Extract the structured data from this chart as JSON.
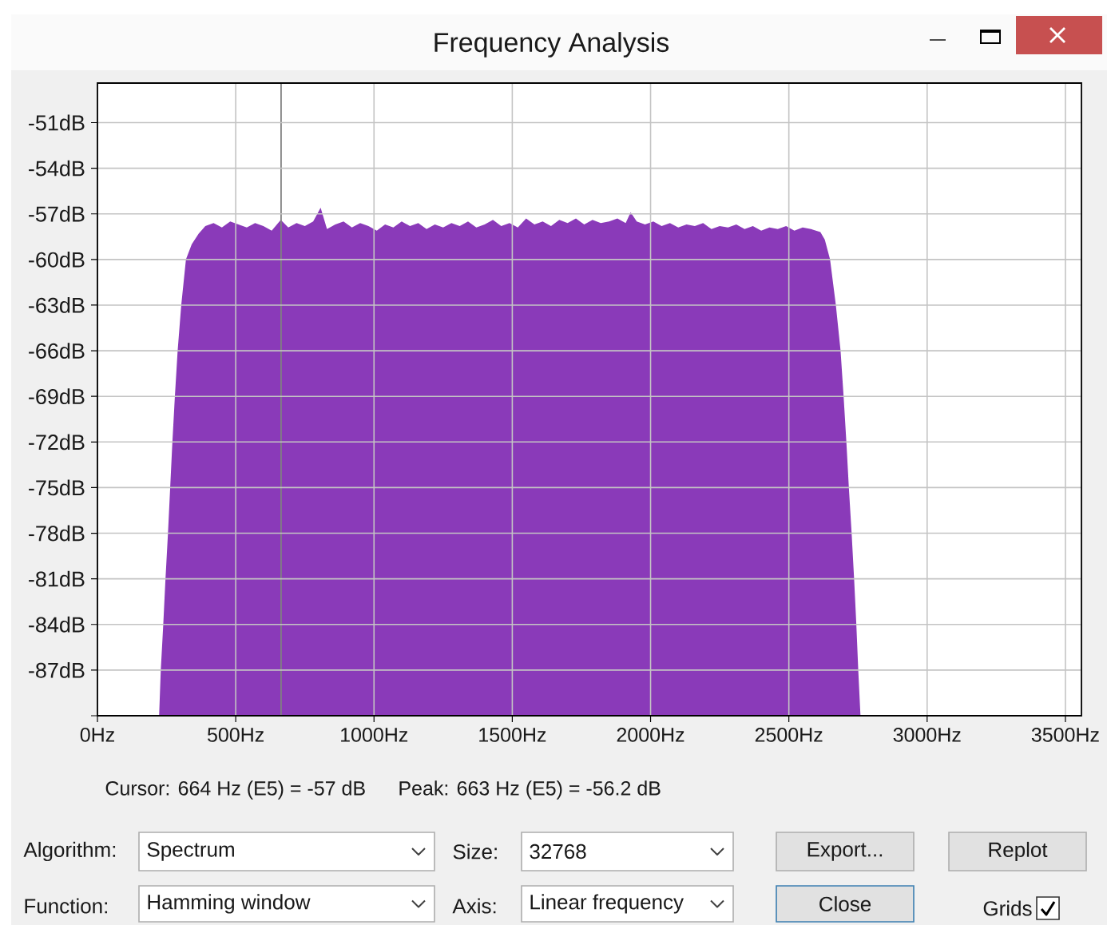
{
  "chart_data": {
    "type": "area",
    "title": "Frequency Analysis",
    "x": [
      223,
      229,
      238,
      246,
      255,
      263,
      271,
      280,
      290,
      303,
      320,
      341,
      366,
      390,
      420,
      450,
      480,
      510,
      540,
      570,
      600,
      630,
      663,
      690,
      720,
      750,
      780,
      807,
      830,
      860,
      890,
      920,
      950,
      980,
      1010,
      1040,
      1070,
      1100,
      1130,
      1160,
      1190,
      1220,
      1250,
      1280,
      1310,
      1340,
      1370,
      1400,
      1430,
      1460,
      1490,
      1520,
      1550,
      1580,
      1610,
      1640,
      1670,
      1700,
      1730,
      1760,
      1790,
      1820,
      1850,
      1880,
      1910,
      1928,
      1950,
      1980,
      2010,
      2040,
      2070,
      2100,
      2130,
      2160,
      2190,
      2220,
      2250,
      2280,
      2310,
      2340,
      2370,
      2400,
      2430,
      2460,
      2490,
      2520,
      2550,
      2580,
      2614,
      2630,
      2649,
      2670,
      2687,
      2698,
      2708,
      2717,
      2727,
      2736,
      2744,
      2751,
      2759
    ],
    "values": [
      -90,
      -87,
      -84,
      -81,
      -78,
      -75,
      -72,
      -69,
      -66,
      -63,
      -60,
      -59,
      -58.3,
      -57.8,
      -57.6,
      -57.9,
      -57.5,
      -57.7,
      -57.9,
      -57.6,
      -57.8,
      -58.1,
      -57.4,
      -57.9,
      -57.6,
      -57.8,
      -57.5,
      -56.6,
      -58.0,
      -57.7,
      -57.5,
      -57.9,
      -57.6,
      -57.8,
      -58.1,
      -57.7,
      -57.9,
      -57.5,
      -57.8,
      -57.6,
      -58.0,
      -57.7,
      -57.9,
      -57.6,
      -57.8,
      -57.5,
      -57.9,
      -57.7,
      -57.4,
      -57.8,
      -57.6,
      -57.9,
      -57.3,
      -57.7,
      -57.5,
      -57.8,
      -57.4,
      -57.6,
      -57.3,
      -57.7,
      -57.4,
      -57.6,
      -57.5,
      -57.3,
      -57.6,
      -56.9,
      -57.5,
      -57.7,
      -57.5,
      -57.8,
      -57.6,
      -57.9,
      -57.7,
      -57.8,
      -57.6,
      -58.0,
      -57.8,
      -57.9,
      -57.7,
      -58.0,
      -57.8,
      -58.1,
      -57.9,
      -58.0,
      -57.8,
      -58.1,
      -57.9,
      -58.0,
      -58.2,
      -58.7,
      -60,
      -63,
      -66,
      -69,
      -72,
      -75,
      -78,
      -81,
      -84,
      -87,
      -90
    ],
    "color": "#8a3ab9",
    "xlim": [
      0,
      3558
    ],
    "ylim": [
      -90,
      -48.4
    ],
    "xticks": [
      {
        "value": 0,
        "label": "0Hz"
      },
      {
        "value": 500,
        "label": "500Hz"
      },
      {
        "value": 1000,
        "label": "1000Hz"
      },
      {
        "value": 1500,
        "label": "1500Hz"
      },
      {
        "value": 2000,
        "label": "2000Hz"
      },
      {
        "value": 2500,
        "label": "2500Hz"
      },
      {
        "value": 3000,
        "label": "3000Hz"
      },
      {
        "value": 3500,
        "label": "3500Hz"
      }
    ],
    "yticks": [
      {
        "value": -90,
        "label": null
      },
      {
        "value": -87,
        "label": "-87dB"
      },
      {
        "value": -84,
        "label": "-84dB"
      },
      {
        "value": -81,
        "label": "-81dB"
      },
      {
        "value": -78,
        "label": "-78dB"
      },
      {
        "value": -75,
        "label": "-75dB"
      },
      {
        "value": -72,
        "label": "-72dB"
      },
      {
        "value": -69,
        "label": "-69dB"
      },
      {
        "value": -66,
        "label": "-66dB"
      },
      {
        "value": -63,
        "label": "-63dB"
      },
      {
        "value": -60,
        "label": "-60dB"
      },
      {
        "value": -57,
        "label": "-57dB"
      },
      {
        "value": -54,
        "label": "-54dB"
      },
      {
        "value": -51,
        "label": "-51dB"
      }
    ],
    "grid": true,
    "ref_lines": [
      {
        "axis": "x",
        "value": 664,
        "color": "#808080"
      }
    ],
    "annotations": [
      "Cursor: 664 Hz (E5) = -57 dB",
      "Peak: 663 Hz (E5) = -56.2 dB",
      "Algorithm:",
      "Spectrum",
      "Size:",
      "32768",
      "Export...",
      "Replot",
      "Function:",
      "Hamming window",
      "Axis:",
      "Linear frequency",
      "Close",
      "Grids"
    ]
  }
}
